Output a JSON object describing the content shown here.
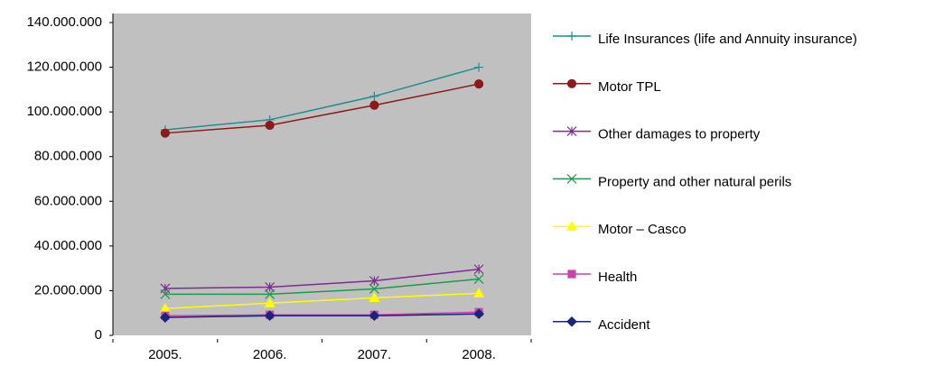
{
  "chart_data": {
    "type": "line",
    "categories": [
      "2005.",
      "2006.",
      "2007.",
      "2008."
    ],
    "ylim": [
      0,
      140000000
    ],
    "yticks": [
      0,
      {
        "value": 20000000,
        "label": "20.000.000"
      },
      {
        "value": 40000000,
        "label": "40.000.000"
      },
      {
        "value": 60000000,
        "label": "60.000.000"
      },
      {
        "value": 80000000,
        "label": "80.000.000"
      },
      {
        "value": 100000000,
        "label": "100.000.000"
      },
      {
        "value": 120000000,
        "label": "120.000.000"
      },
      {
        "value": 140000000,
        "label": "140.000.000"
      }
    ],
    "legend": "right",
    "plot_background": "#c0c0c0",
    "series": [
      {
        "name": "Life Insurances (life and Annuity insurance)",
        "color": "#1f8f8f",
        "marker": "plus",
        "values": [
          92000000,
          96500000,
          107000000,
          120000000
        ]
      },
      {
        "name": "Motor TPL",
        "color": "#8b1a1a",
        "marker": "circle",
        "values": [
          90500000,
          94000000,
          103000000,
          112500000
        ]
      },
      {
        "name": "Other damages to property",
        "color": "#7b2e8e",
        "marker": "asterisk",
        "values": [
          21000000,
          21600000,
          24400000,
          29600000
        ]
      },
      {
        "name": "Property and other natural perils",
        "color": "#1a9a4a",
        "marker": "x",
        "values": [
          18400000,
          18400000,
          20800000,
          25200000
        ]
      },
      {
        "name": "Motor – Casco",
        "color": "#ffff00",
        "marker": "triangle",
        "values": [
          12000000,
          14400000,
          16800000,
          18800000
        ]
      },
      {
        "name": "Health",
        "color": "#cc44aa",
        "marker": "square",
        "values": [
          8800000,
          9200000,
          9200000,
          10400000
        ]
      },
      {
        "name": "Accident",
        "color": "#1a237e",
        "marker": "diamond",
        "values": [
          8000000,
          8800000,
          8800000,
          9600000
        ]
      }
    ]
  }
}
